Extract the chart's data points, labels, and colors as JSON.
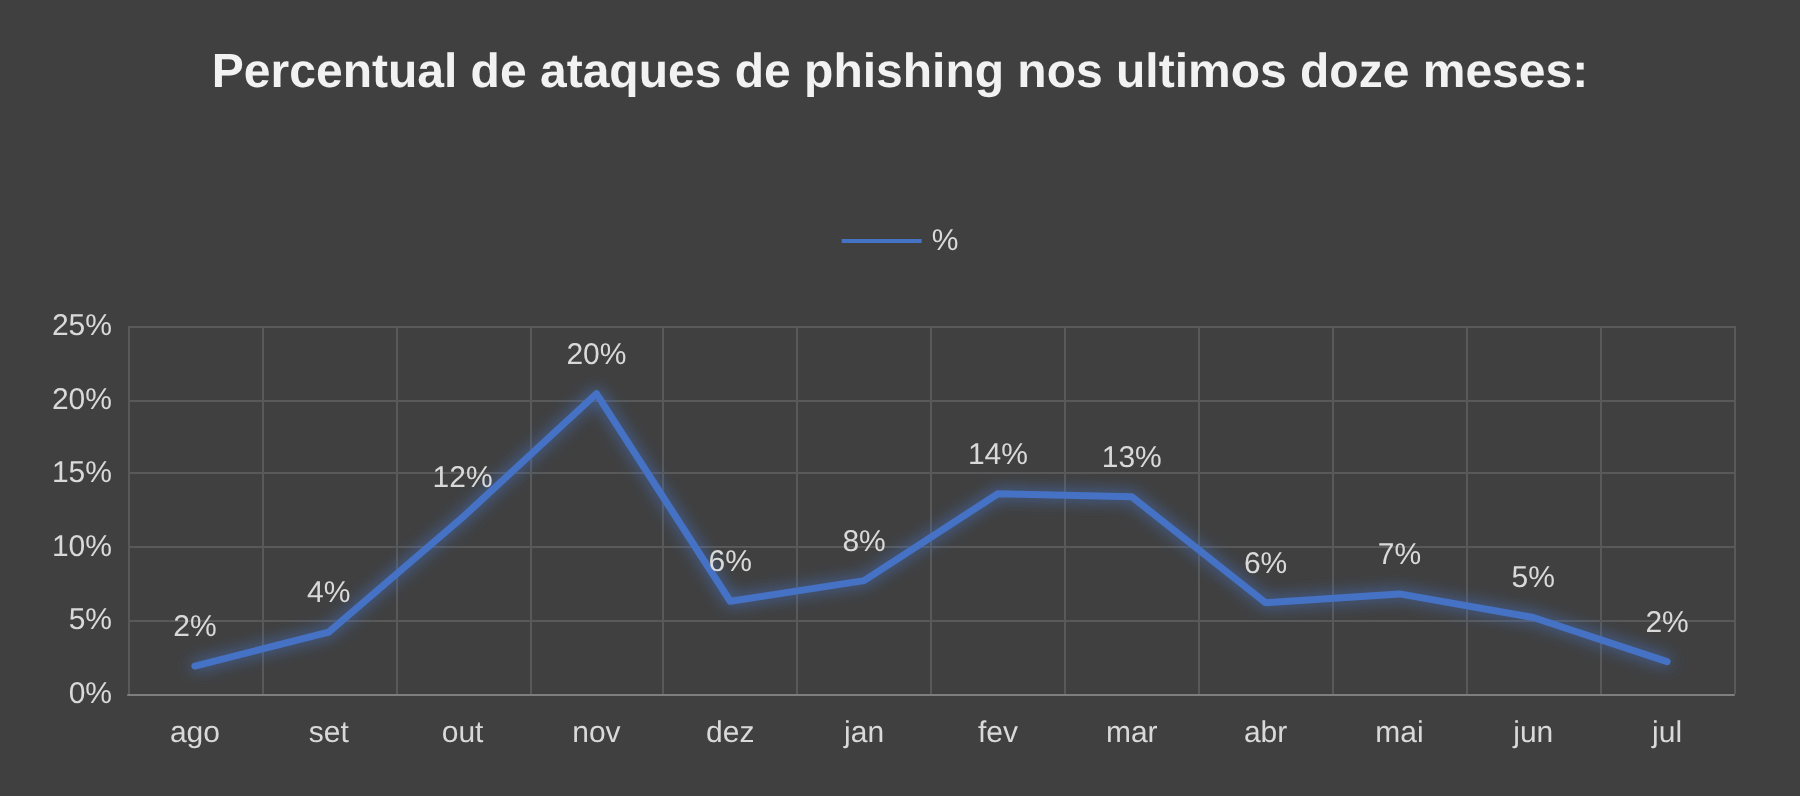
{
  "chart_data": {
    "type": "line",
    "title": "Percentual de ataques de phishing nos ultimos doze meses:",
    "categories": [
      "ago",
      "set",
      "out",
      "nov",
      "dez",
      "jan",
      "fev",
      "mar",
      "abr",
      "mai",
      "jun",
      "jul"
    ],
    "series": [
      {
        "name": "%",
        "color": "#4472c4",
        "values": [
          1.9,
          4.2,
          12,
          20.4,
          6.3,
          7.7,
          13.6,
          13.4,
          6.2,
          6.8,
          5.2,
          2.2
        ],
        "value_labels": [
          "2%",
          "4%",
          "12%",
          "20%",
          "6%",
          "8%",
          "14%",
          "13%",
          "6%",
          "7%",
          "5%",
          "2%"
        ]
      }
    ],
    "ylim": [
      0,
      25
    ],
    "yticks": [
      {
        "value": 0,
        "label": "0%"
      },
      {
        "value": 5,
        "label": "5%"
      },
      {
        "value": 10,
        "label": "10%"
      },
      {
        "value": 15,
        "label": "15%"
      },
      {
        "value": 20,
        "label": "20%"
      },
      {
        "value": 25,
        "label": "25%"
      }
    ],
    "grid": true,
    "legend": "top",
    "marker": "none",
    "line_style": "solid"
  }
}
